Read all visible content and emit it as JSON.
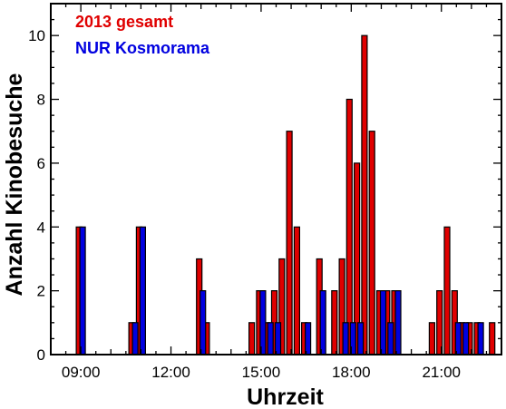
{
  "chart_data": {
    "type": "bar",
    "title": "",
    "xlabel": "Uhrzeit",
    "ylabel": "Anzahl Kinobesuche",
    "xlim": [
      8.0,
      23.0
    ],
    "ylim": [
      0,
      11
    ],
    "x_ticks": [
      9,
      12,
      15,
      18,
      21
    ],
    "x_tick_labels": [
      "09:00",
      "12:00",
      "15:00",
      "18:00",
      "21:00"
    ],
    "y_ticks": [
      0,
      2,
      4,
      6,
      8,
      10
    ],
    "y_tick_labels": [
      "0",
      "2",
      "4",
      "6",
      "8",
      "10"
    ],
    "grid": false,
    "legend_position": "top-left",
    "bin_width_hours": 0.25,
    "series": [
      {
        "name": "2013 gesamt",
        "color": "#e00000",
        "points": [
          {
            "x": 9.0,
            "y": 4
          },
          {
            "x": 10.75,
            "y": 1
          },
          {
            "x": 11.0,
            "y": 4
          },
          {
            "x": 13.0,
            "y": 3
          },
          {
            "x": 13.25,
            "y": 1
          },
          {
            "x": 14.75,
            "y": 1
          },
          {
            "x": 15.0,
            "y": 2
          },
          {
            "x": 15.25,
            "y": 1
          },
          {
            "x": 15.5,
            "y": 2
          },
          {
            "x": 15.75,
            "y": 3
          },
          {
            "x": 16.0,
            "y": 7
          },
          {
            "x": 16.25,
            "y": 4
          },
          {
            "x": 16.5,
            "y": 1
          },
          {
            "x": 17.0,
            "y": 3
          },
          {
            "x": 17.5,
            "y": 2
          },
          {
            "x": 17.75,
            "y": 3
          },
          {
            "x": 18.0,
            "y": 8
          },
          {
            "x": 18.25,
            "y": 6
          },
          {
            "x": 18.5,
            "y": 10
          },
          {
            "x": 18.75,
            "y": 7
          },
          {
            "x": 19.0,
            "y": 2
          },
          {
            "x": 19.25,
            "y": 2
          },
          {
            "x": 19.5,
            "y": 2
          },
          {
            "x": 20.75,
            "y": 1
          },
          {
            "x": 21.0,
            "y": 2
          },
          {
            "x": 21.25,
            "y": 4
          },
          {
            "x": 21.5,
            "y": 2
          },
          {
            "x": 21.75,
            "y": 1
          },
          {
            "x": 22.0,
            "y": 1
          },
          {
            "x": 22.25,
            "y": 1
          },
          {
            "x": 22.75,
            "y": 1
          }
        ]
      },
      {
        "name": "NUR Kosmorama",
        "color": "#0000e0",
        "points": [
          {
            "x": 9.0,
            "y": 4
          },
          {
            "x": 10.75,
            "y": 1
          },
          {
            "x": 11.0,
            "y": 4
          },
          {
            "x": 13.0,
            "y": 2
          },
          {
            "x": 15.0,
            "y": 2
          },
          {
            "x": 15.25,
            "y": 1
          },
          {
            "x": 15.5,
            "y": 1
          },
          {
            "x": 16.5,
            "y": 1
          },
          {
            "x": 17.0,
            "y": 2
          },
          {
            "x": 17.75,
            "y": 1
          },
          {
            "x": 18.0,
            "y": 1
          },
          {
            "x": 18.25,
            "y": 1
          },
          {
            "x": 19.0,
            "y": 2
          },
          {
            "x": 19.25,
            "y": 1
          },
          {
            "x": 19.5,
            "y": 2
          },
          {
            "x": 21.5,
            "y": 1
          },
          {
            "x": 21.75,
            "y": 1
          },
          {
            "x": 22.25,
            "y": 1
          }
        ]
      }
    ]
  }
}
